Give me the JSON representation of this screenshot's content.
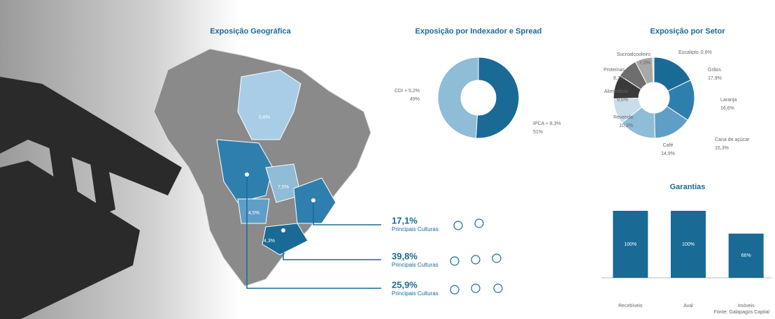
{
  "chart_data": [
    {
      "type": "donut",
      "title": "Exposição por Indexador e Spread",
      "categories": [
        "IPCA + 8,3%",
        "CDI + 5,2%"
      ],
      "values": [
        51,
        49
      ],
      "value_labels": [
        "51%",
        "49%"
      ],
      "colors": [
        "#1a6a96",
        "#8fbcd6"
      ]
    },
    {
      "type": "donut",
      "title": "Exposição por Setor",
      "categories": [
        "Grãos",
        "Laranja",
        "Cana de açúcar",
        "Café",
        "Revenda",
        "Alimentício",
        "Proteínas",
        "Sucroalcooleiro",
        "Eucalipto"
      ],
      "values": [
        17.9,
        16.6,
        15.3,
        14.9,
        10.2,
        9.6,
        8.3,
        7.0,
        0.6
      ],
      "value_labels": [
        "17,9%",
        "16,6%",
        "15,3%",
        "14,9%",
        "10,2%",
        "9,6%",
        "8,3%",
        "7,0%",
        "0,6%"
      ],
      "colors": [
        "#1a6a96",
        "#2f7fae",
        "#5f9ec6",
        "#8fbcd6",
        "#c7dde9",
        "#3a3a3a",
        "#6e6e6e",
        "#a8a8a8",
        "#cfcfcf"
      ]
    },
    {
      "type": "bar",
      "title": "Garantias",
      "categories": [
        "Recebíveis",
        "Aval",
        "Imóveis"
      ],
      "values": [
        100,
        100,
        66
      ],
      "value_labels": [
        "100%",
        "100%",
        "66%"
      ],
      "color": "#1a6a96"
    }
  ],
  "map": {
    "title": "Exposição Geográfica",
    "region_labels": [
      "0,6%",
      "7,5%",
      "4,5%",
      "4,3%"
    ],
    "callouts": [
      {
        "value": "17,1%",
        "label": "Principais Culturas"
      },
      {
        "value": "39,8%",
        "label": "Principais Culturas"
      },
      {
        "value": "25,9%",
        "label": "Principais Culturas"
      }
    ]
  },
  "source": "Fonte: Galapagos Capital"
}
